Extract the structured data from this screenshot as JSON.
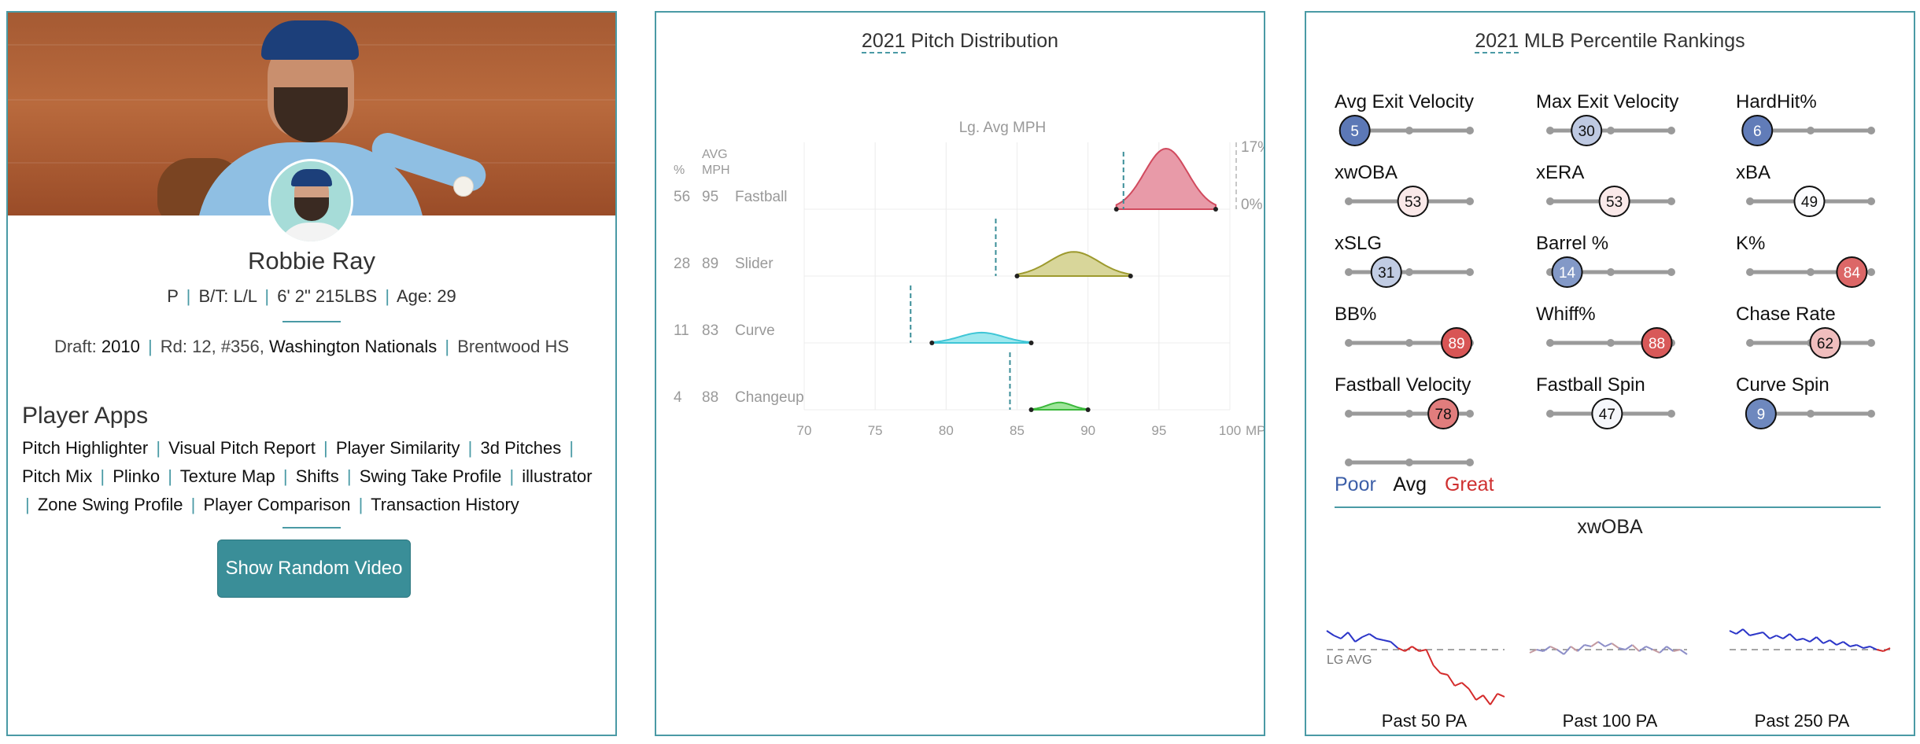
{
  "player": {
    "name": "Robbie Ray",
    "position": "P",
    "bt": "B/T: L/L",
    "size": "6' 2\" 215LBS",
    "age": "Age: 29",
    "draft_label": "Draft:",
    "draft_year": "2010",
    "draft_round": "Rd: 12, #356,",
    "draft_team": "Washington Nationals",
    "school": "Brentwood HS",
    "sep": "|"
  },
  "apps": {
    "title": "Player Apps",
    "links": [
      "Pitch Highlighter",
      "Visual Pitch Report",
      "Player Similarity",
      "3d Pitches",
      "Pitch Mix",
      "Plinko",
      "Texture Map",
      "Shifts",
      "Swing Take Profile",
      "illustrator",
      "Zone Swing Profile",
      "Player Comparison",
      "Transaction History"
    ],
    "button": "Show Random Video"
  },
  "pitch_chart": {
    "year": "2021",
    "title_rest": " Pitch Distribution",
    "header_pct": "%",
    "header_avg": "AVG",
    "header_mph": "MPH",
    "lg_avg_label": "Lg. Avg MPH",
    "top_pct": "17%",
    "zero_pct": "0%",
    "axis_ticks": [
      "70",
      "75",
      "80",
      "85",
      "90",
      "95",
      "100"
    ],
    "axis_unit": "MPH",
    "colors": {
      "Fastball": "#e89aa8",
      "Slider": "#d8d69a",
      "Curve": "#9fe8ee",
      "Changeup": "#9ee59a"
    },
    "lines": {
      "Fastball": "#d14a5e",
      "Slider": "#9d9a2e",
      "Curve": "#3fc6d6",
      "Changeup": "#3bb83b"
    }
  },
  "chart_data": {
    "type": "area",
    "title": "2021 Pitch Distribution",
    "xlabel": "MPH",
    "xlim": [
      70,
      100
    ],
    "series": [
      {
        "name": "Fastball",
        "pct": "56",
        "avg_mph": "95",
        "lo": 92,
        "hi": 99,
        "peak": 95.5,
        "lg_avg": 92.5
      },
      {
        "name": "Slider",
        "pct": "28",
        "avg_mph": "89",
        "lo": 85,
        "hi": 93,
        "peak": 89,
        "lg_avg": 83.5
      },
      {
        "name": "Curve",
        "pct": "11",
        "avg_mph": "83",
        "lo": 79,
        "hi": 86,
        "peak": 82.5,
        "lg_avg": 77.5
      },
      {
        "name": "Changeup",
        "pct": "4",
        "avg_mph": "88",
        "lo": 86,
        "hi": 90,
        "peak": 88,
        "lg_avg": 84.5
      }
    ],
    "peak_heights": [
      1.0,
      0.4,
      0.17,
      0.12
    ]
  },
  "percentiles": {
    "year": "2021",
    "title_rest": " MLB Percentile Rankings",
    "metrics": [
      {
        "label": "Avg Exit Velocity",
        "value": "5"
      },
      {
        "label": "Max Exit Velocity",
        "value": "30"
      },
      {
        "label": "HardHit%",
        "value": "6"
      },
      {
        "label": "xwOBA",
        "value": "53"
      },
      {
        "label": "xERA",
        "value": "53"
      },
      {
        "label": "xBA",
        "value": "49"
      },
      {
        "label": "xSLG",
        "value": "31"
      },
      {
        "label": "Barrel %",
        "value": "14"
      },
      {
        "label": "K%",
        "value": "84"
      },
      {
        "label": "BB%",
        "value": "89"
      },
      {
        "label": "Whiff%",
        "value": "88"
      },
      {
        "label": "Chase Rate",
        "value": "62"
      },
      {
        "label": "Fastball Velocity",
        "value": "78"
      },
      {
        "label": "Fastball Spin",
        "value": "47"
      },
      {
        "label": "Curve Spin",
        "value": "9"
      }
    ],
    "legend": {
      "poor": "Poor",
      "avg": "Avg",
      "great": "Great"
    },
    "colors": {
      "poor": "#3d5fa8",
      "avg": "#111111",
      "great": "#cf3030"
    }
  },
  "xwoba": {
    "title": "xwOBA",
    "lg_avg": "LG AVG",
    "windows": [
      "Past 50 PA",
      "Past 100 PA",
      "Past 250 PA"
    ]
  }
}
